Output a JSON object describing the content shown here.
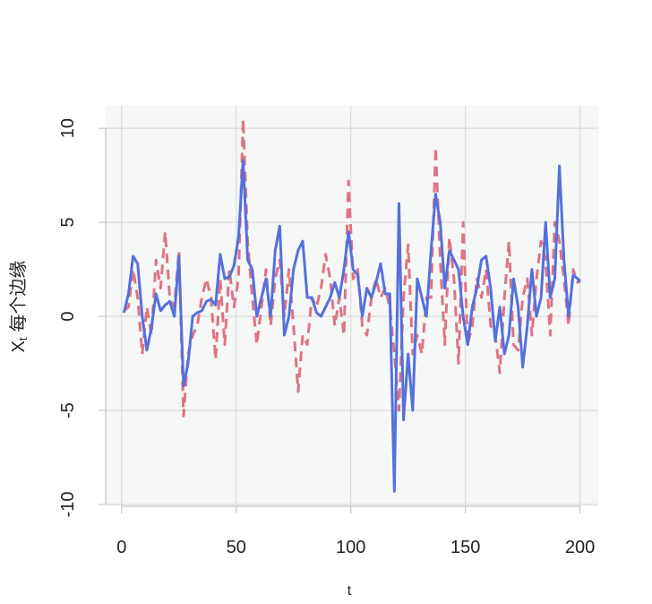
{
  "chart_data": {
    "type": "line",
    "xlabel": "t",
    "ylabel": "X",
    "ylabel_sub": "t",
    "ylabel_rest": "每个边缘",
    "x": [
      1,
      3,
      5,
      7,
      9,
      11,
      13,
      15,
      17,
      19,
      21,
      23,
      25,
      27,
      29,
      31,
      33,
      35,
      37,
      39,
      41,
      43,
      45,
      47,
      49,
      51,
      53,
      55,
      57,
      59,
      61,
      63,
      65,
      67,
      69,
      71,
      73,
      75,
      77,
      79,
      81,
      83,
      85,
      87,
      89,
      91,
      93,
      95,
      97,
      99,
      101,
      103,
      105,
      107,
      109,
      111,
      113,
      115,
      117,
      119,
      121,
      123,
      125,
      127,
      129,
      131,
      133,
      135,
      137,
      139,
      141,
      143,
      145,
      147,
      149,
      151,
      153,
      155,
      157,
      159,
      161,
      163,
      165,
      167,
      169,
      171,
      173,
      175,
      177,
      179,
      181,
      183,
      185,
      187,
      189,
      191,
      193,
      195,
      197,
      199,
      200
    ],
    "series": [
      {
        "color": "#5470dc",
        "dash": false,
        "values": [
          0.2,
          1.2,
          3.2,
          2.8,
          0,
          -1.8,
          -0.6,
          1.2,
          0.3,
          0.6,
          0.8,
          0,
          3.2,
          -3.7,
          -2.5,
          0,
          0.2,
          0.3,
          0.8,
          0.9,
          0.6,
          3.3,
          2,
          2.1,
          2.7,
          4.2,
          8.3,
          3,
          2.5,
          0,
          1,
          2,
          0,
          3.5,
          4.8,
          -1,
          0,
          2.5,
          3.5,
          4,
          1,
          1,
          0.2,
          0,
          0.5,
          1,
          1.8,
          1,
          2.5,
          4.5,
          2.5,
          2.2,
          0,
          1.5,
          1,
          1.8,
          2.8,
          1.2,
          1.2,
          -9.3,
          6,
          -5.5,
          -2,
          -5,
          2,
          1,
          0,
          3.5,
          6.5,
          5,
          1.5,
          3.5,
          3,
          2.5,
          0,
          -1.5,
          0.5,
          1.5,
          3,
          3.2,
          1.5,
          -1.3,
          0.5,
          -2,
          -1,
          2,
          0.5,
          -2.7,
          -0.5,
          2.5,
          0,
          1,
          5,
          1,
          2,
          8,
          3,
          0,
          2.2,
          2,
          1.8
        ]
      },
      {
        "color": "#df7384",
        "dash": true,
        "values": [
          0.3,
          0.5,
          2.5,
          1,
          -2,
          0.5,
          -1,
          3,
          1.5,
          4.5,
          1,
          0.5,
          3.5,
          -5.3,
          -2,
          -1,
          -0.5,
          1,
          2,
          1,
          -2.3,
          2,
          -1.5,
          2.5,
          0.5,
          2,
          10.5,
          4,
          1,
          -1.5,
          0.5,
          2.5,
          -0.5,
          2,
          3,
          0,
          2.5,
          -0.5,
          -4,
          -1,
          -1.5,
          1,
          0.5,
          1.5,
          3.3,
          2,
          -0.5,
          1,
          -1,
          7.2,
          2,
          2.5,
          -0.5,
          -1,
          1,
          2,
          1,
          1.5,
          0.5,
          -2,
          -5,
          1,
          3.8,
          -2,
          -1,
          -2,
          1,
          1,
          9,
          3,
          -1.5,
          4.2,
          2,
          -2.5,
          5,
          -1.5,
          -0.5,
          2,
          1,
          2.5,
          -0.5,
          -1,
          -3,
          1,
          4,
          -1.5,
          -1.8,
          1,
          2,
          -1,
          2,
          4,
          3,
          -1,
          5,
          4,
          2,
          -0.5,
          2.5,
          1.8,
          2
        ]
      }
    ],
    "xlim": [
      -6.96,
      207.96
    ],
    "ylim": [
      -10.1,
      11.2
    ],
    "xticks": [
      0,
      50,
      100,
      150,
      200
    ],
    "yticks": [
      -10,
      -5,
      0,
      5,
      10
    ],
    "grid": true
  }
}
